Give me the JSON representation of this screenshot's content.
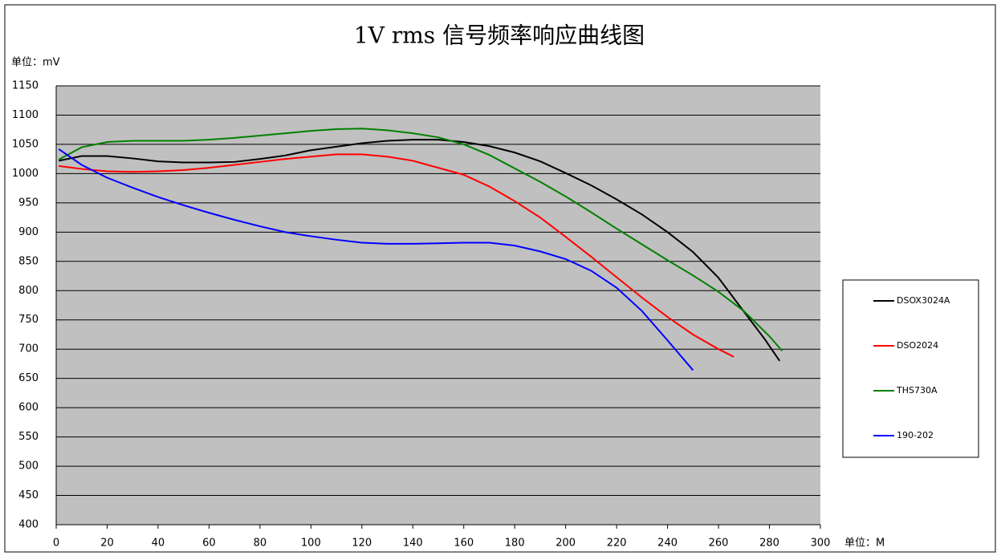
{
  "chart_data": {
    "type": "line",
    "title": "1V rms 信号频率响应曲线图",
    "y_label": "单位：mV",
    "x_label": "单位：M",
    "xlim": [
      0,
      300
    ],
    "xticks": [
      0,
      20,
      40,
      60,
      80,
      100,
      120,
      140,
      160,
      180,
      200,
      220,
      240,
      260,
      280,
      300
    ],
    "ylim": [
      400,
      1150
    ],
    "yticks": [
      400,
      450,
      500,
      550,
      600,
      650,
      700,
      750,
      800,
      850,
      900,
      950,
      1000,
      1050,
      1100,
      1150
    ],
    "grid": true,
    "legend": "right",
    "series": [
      {
        "name": "DSOX3024A",
        "color": "#000000",
        "x": [
          1,
          10,
          20,
          30,
          40,
          50,
          60,
          70,
          80,
          90,
          100,
          110,
          120,
          130,
          140,
          150,
          160,
          170,
          180,
          190,
          200,
          210,
          220,
          230,
          240,
          250,
          260,
          270,
          278,
          284
        ],
        "values": [
          1022,
          1030,
          1030,
          1026,
          1021,
          1019,
          1019,
          1020,
          1025,
          1031,
          1040,
          1046,
          1052,
          1056,
          1058,
          1058,
          1054,
          1047,
          1036,
          1021,
          1001,
          980,
          956,
          930,
          900,
          866,
          822,
          764,
          718,
          680
        ]
      },
      {
        "name": "DSO2024",
        "color": "#ff0000",
        "x": [
          1,
          10,
          20,
          30,
          40,
          50,
          60,
          70,
          80,
          90,
          100,
          110,
          120,
          130,
          140,
          150,
          160,
          170,
          180,
          190,
          200,
          210,
          220,
          230,
          240,
          250,
          260,
          266
        ],
        "values": [
          1013,
          1008,
          1004,
          1003,
          1004,
          1006,
          1010,
          1015,
          1020,
          1025,
          1029,
          1033,
          1033,
          1029,
          1022,
          1010,
          998,
          978,
          953,
          925,
          892,
          858,
          823,
          788,
          755,
          725,
          700,
          687
        ]
      },
      {
        "name": "THS730A",
        "color": "#008000",
        "x": [
          1,
          10,
          20,
          30,
          40,
          50,
          60,
          70,
          80,
          90,
          100,
          110,
          120,
          130,
          140,
          150,
          160,
          170,
          180,
          190,
          200,
          210,
          220,
          230,
          240,
          250,
          260,
          270,
          280,
          285
        ],
        "values": [
          1024,
          1045,
          1054,
          1056,
          1056,
          1056,
          1058,
          1061,
          1065,
          1069,
          1073,
          1076,
          1077,
          1074,
          1069,
          1062,
          1050,
          1032,
          1009,
          986,
          961,
          934,
          906,
          879,
          852,
          826,
          798,
          765,
          722,
          697
        ]
      },
      {
        "name": "190-202",
        "color": "#0000ff",
        "x": [
          1,
          10,
          20,
          30,
          40,
          50,
          60,
          70,
          80,
          90,
          100,
          110,
          120,
          130,
          140,
          150,
          160,
          170,
          180,
          190,
          200,
          210,
          220,
          230,
          240,
          250
        ],
        "values": [
          1042,
          1015,
          993,
          976,
          960,
          946,
          933,
          921,
          910,
          900,
          893,
          887,
          882,
          880,
          880,
          881,
          882,
          882,
          877,
          867,
          854,
          834,
          805,
          765,
          715,
          664
        ]
      }
    ]
  }
}
